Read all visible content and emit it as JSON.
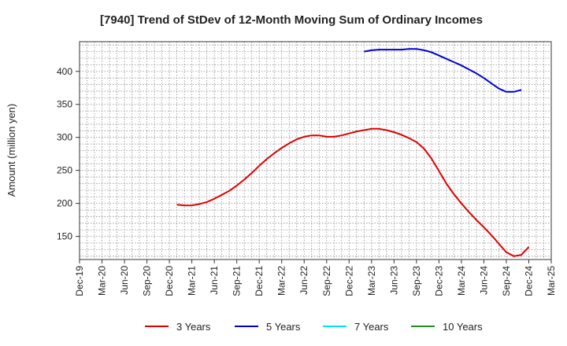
{
  "chart_data": {
    "type": "line",
    "title": "[7940]  Trend of StDev of 12-Month Moving Sum of Ordinary Incomes",
    "xlabel": "",
    "ylabel": "Amount (million yen)",
    "x_ticks": [
      "Dec-19",
      "Mar-20",
      "Jun-20",
      "Sep-20",
      "Dec-20",
      "Mar-21",
      "Jun-21",
      "Sep-21",
      "Dec-21",
      "Mar-22",
      "Jun-22",
      "Sep-22",
      "Dec-22",
      "Mar-23",
      "Jun-23",
      "Sep-23",
      "Dec-23",
      "Mar-24",
      "Jun-24",
      "Sep-24",
      "Dec-24",
      "Mar-25"
    ],
    "y_ticks": [
      150,
      200,
      250,
      300,
      350,
      400
    ],
    "ylim": [
      115,
      445
    ],
    "grid": true,
    "legend_position": "bottom",
    "series": [
      {
        "name": "3 Years",
        "color": "#dd0000",
        "points": [
          [
            "2021-01",
            198
          ],
          [
            "2021-02",
            197
          ],
          [
            "2021-03",
            197
          ],
          [
            "2021-04",
            199
          ],
          [
            "2021-05",
            202
          ],
          [
            "2021-06",
            207
          ],
          [
            "2021-07",
            213
          ],
          [
            "2021-08",
            219
          ],
          [
            "2021-09",
            227
          ],
          [
            "2021-10",
            236
          ],
          [
            "2021-11",
            246
          ],
          [
            "2021-12",
            257
          ],
          [
            "2022-01",
            267
          ],
          [
            "2022-02",
            276
          ],
          [
            "2022-03",
            284
          ],
          [
            "2022-04",
            291
          ],
          [
            "2022-05",
            297
          ],
          [
            "2022-06",
            301
          ],
          [
            "2022-07",
            303
          ],
          [
            "2022-08",
            303
          ],
          [
            "2022-09",
            301
          ],
          [
            "2022-10",
            301
          ],
          [
            "2022-11",
            303
          ],
          [
            "2022-12",
            306
          ],
          [
            "2023-01",
            309
          ],
          [
            "2023-02",
            311
          ],
          [
            "2023-03",
            313
          ],
          [
            "2023-04",
            313
          ],
          [
            "2023-05",
            311
          ],
          [
            "2023-06",
            308
          ],
          [
            "2023-07",
            304
          ],
          [
            "2023-08",
            299
          ],
          [
            "2023-09",
            293
          ],
          [
            "2023-10",
            283
          ],
          [
            "2023-11",
            268
          ],
          [
            "2023-12",
            249
          ],
          [
            "2024-01",
            230
          ],
          [
            "2024-02",
            214
          ],
          [
            "2024-03",
            200
          ],
          [
            "2024-04",
            187
          ],
          [
            "2024-05",
            175
          ],
          [
            "2024-06",
            164
          ],
          [
            "2024-07",
            152
          ],
          [
            "2024-08",
            139
          ],
          [
            "2024-09",
            126
          ],
          [
            "2024-10",
            120
          ],
          [
            "2024-11",
            122
          ],
          [
            "2024-12",
            134
          ]
        ]
      },
      {
        "name": "5 Years",
        "color": "#0000cc",
        "points": [
          [
            "2023-02",
            430
          ],
          [
            "2023-03",
            432
          ],
          [
            "2023-04",
            433
          ],
          [
            "2023-05",
            433
          ],
          [
            "2023-06",
            433
          ],
          [
            "2023-07",
            433
          ],
          [
            "2023-08",
            434
          ],
          [
            "2023-09",
            434
          ],
          [
            "2023-10",
            432
          ],
          [
            "2023-11",
            429
          ],
          [
            "2023-12",
            424
          ],
          [
            "2024-01",
            419
          ],
          [
            "2024-02",
            414
          ],
          [
            "2024-03",
            409
          ],
          [
            "2024-04",
            403
          ],
          [
            "2024-05",
            397
          ],
          [
            "2024-06",
            390
          ],
          [
            "2024-07",
            382
          ],
          [
            "2024-08",
            374
          ],
          [
            "2024-09",
            369
          ],
          [
            "2024-10",
            369
          ],
          [
            "2024-11",
            372
          ]
        ]
      },
      {
        "name": "7 Years",
        "color": "#00e5ee",
        "points": []
      },
      {
        "name": "10 Years",
        "color": "#228b22",
        "points": []
      }
    ]
  }
}
